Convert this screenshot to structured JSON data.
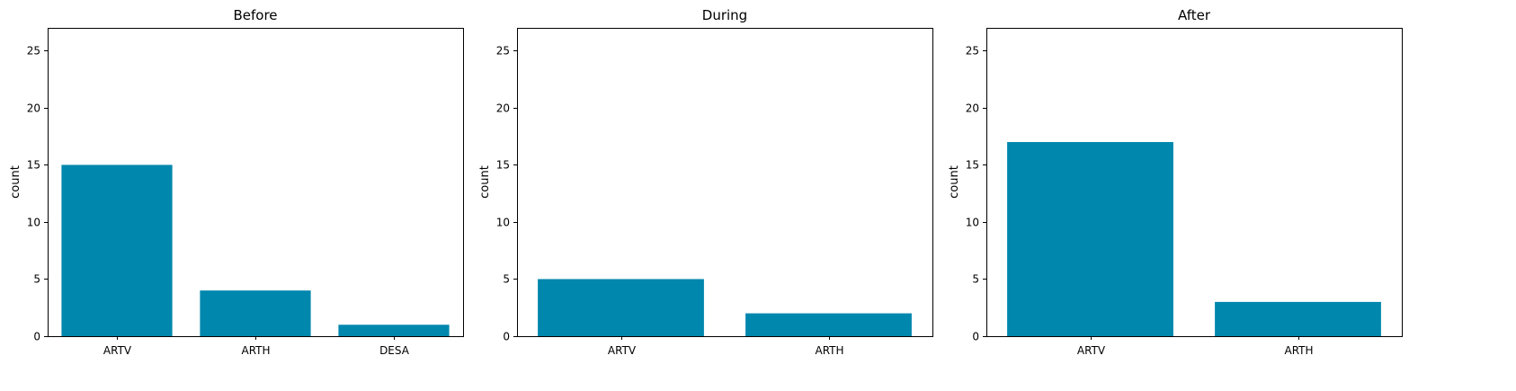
{
  "chart_data": [
    {
      "type": "bar",
      "title": "Before",
      "xlabel": "",
      "ylabel": "count",
      "categories": [
        "ARTV",
        "ARTH",
        "DESA"
      ],
      "values": [
        15,
        4,
        1
      ],
      "ylim": [
        0,
        27
      ],
      "yticks": [
        0,
        5,
        10,
        15,
        20,
        25
      ],
      "grid": false,
      "color": "#0087AD"
    },
    {
      "type": "bar",
      "title": "During",
      "xlabel": "",
      "ylabel": "count",
      "categories": [
        "ARTV",
        "ARTH"
      ],
      "values": [
        5,
        2
      ],
      "ylim": [
        0,
        27
      ],
      "yticks": [
        0,
        5,
        10,
        15,
        20,
        25
      ],
      "grid": false,
      "color": "#0087AD"
    },
    {
      "type": "bar",
      "title": "After",
      "xlabel": "",
      "ylabel": "count",
      "categories": [
        "ARTV",
        "ARTH"
      ],
      "values": [
        17,
        3
      ],
      "ylim": [
        0,
        27
      ],
      "yticks": [
        0,
        5,
        10,
        15,
        20,
        25
      ],
      "grid": false,
      "color": "#0087AD"
    }
  ]
}
